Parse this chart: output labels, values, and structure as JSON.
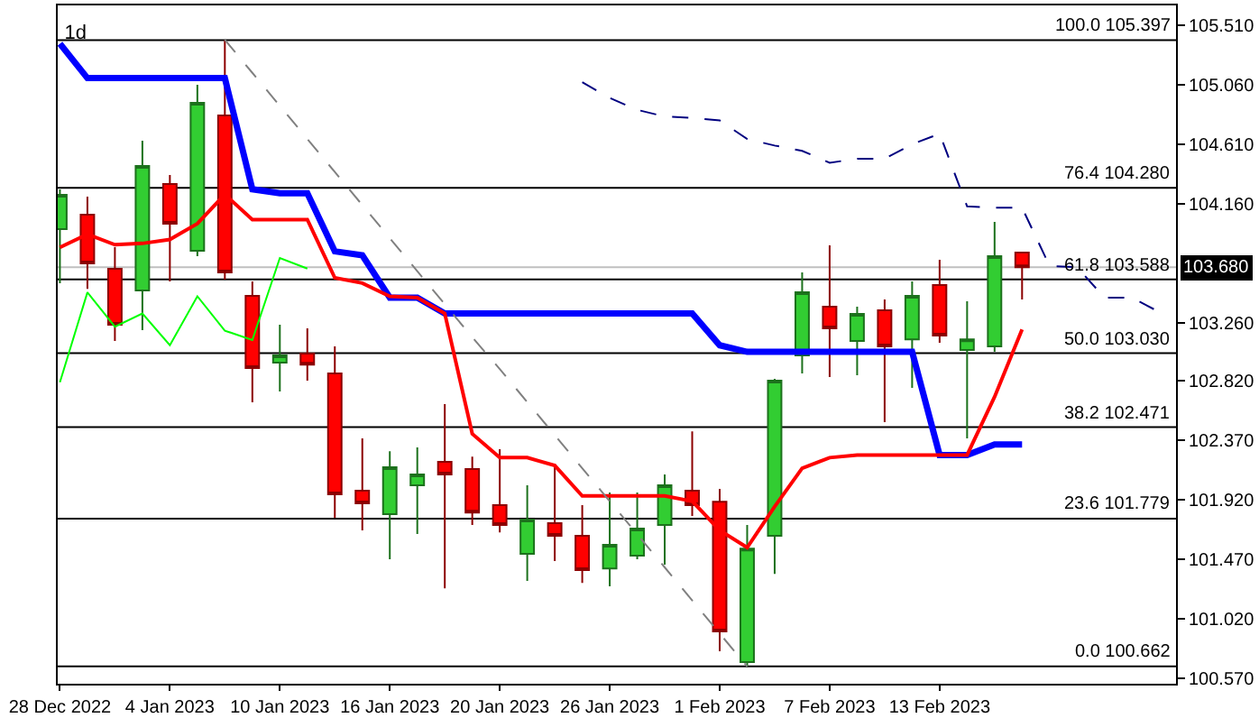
{
  "chart_data": {
    "type": "candlestick",
    "title": "1d",
    "categories": [
      "28 Dec 2022",
      null,
      null,
      null,
      "4 Jan 2023",
      null,
      null,
      null,
      "10 Jan 2023",
      null,
      null,
      null,
      "16 Jan 2023",
      null,
      null,
      null,
      "20 Jan 2023",
      null,
      null,
      null,
      "26 Jan 2023",
      null,
      null,
      null,
      "1 Feb 2023",
      null,
      null,
      null,
      "7 Feb 2023",
      null,
      null,
      null,
      "13 Feb 2023",
      null,
      null,
      null,
      null,
      null,
      null,
      null,
      null
    ],
    "ohlc": [
      [
        103.968,
        104.268,
        103.558,
        104.227
      ],
      [
        104.077,
        104.213,
        103.517,
        103.709
      ],
      [
        103.668,
        103.831,
        103.122,
        103.245
      ],
      [
        103.504,
        104.637,
        103.204,
        104.445
      ],
      [
        104.309,
        104.377,
        103.572,
        104.009
      ],
      [
        103.804,
        105.06,
        103.763,
        104.923
      ],
      [
        104.828,
        105.397,
        103.586,
        103.64
      ],
      [
        103.463,
        103.572,
        102.658,
        102.917
      ],
      [
        102.958,
        103.245,
        102.74,
        103.013
      ],
      [
        103.026,
        103.217,
        102.822,
        102.944
      ],
      [
        102.876,
        103.081,
        101.784,
        101.962
      ],
      [
        101.989,
        102.385,
        101.689,
        101.894
      ],
      [
        101.812,
        102.289,
        101.471,
        102.167
      ],
      [
        102.03,
        102.317,
        101.662,
        102.112
      ],
      [
        102.208,
        102.644,
        101.252,
        102.112
      ],
      [
        102.153,
        102.248,
        101.73,
        101.825
      ],
      [
        101.88,
        102.303,
        101.675,
        101.73
      ],
      [
        101.512,
        102.03,
        101.307,
        101.771
      ],
      [
        101.744,
        102.194,
        101.457,
        101.648
      ],
      [
        101.648,
        101.88,
        101.293,
        101.389
      ],
      [
        101.402,
        101.976,
        101.266,
        101.58
      ],
      [
        101.498,
        101.976,
        101.471,
        101.703
      ],
      [
        101.73,
        102.112,
        101.43,
        102.03
      ],
      [
        101.989,
        102.439,
        101.798,
        101.88
      ],
      [
        101.907,
        102.003,
        100.775,
        100.925
      ],
      [
        100.693,
        101.73,
        100.662,
        101.552
      ],
      [
        101.648,
        102.835,
        101.361,
        102.822
      ],
      [
        103.013,
        103.64,
        102.876,
        103.49
      ],
      [
        103.381,
        103.845,
        102.849,
        103.217
      ],
      [
        103.122,
        103.381,
        102.863,
        103.327
      ],
      [
        103.354,
        103.436,
        102.508,
        103.081
      ],
      [
        103.135,
        103.572,
        102.767,
        103.463
      ],
      [
        103.545,
        103.736,
        103.108,
        103.163
      ],
      [
        103.054,
        103.422,
        102.385,
        103.135
      ],
      [
        103.081,
        104.022,
        103.04,
        103.763
      ],
      [
        103.79,
        103.79,
        103.436,
        103.68
      ],
      null,
      null,
      null,
      null,
      null
    ],
    "colors": [
      "#32cd32",
      "#ff0000",
      "#ff0000",
      "#32cd32",
      "#ff0000",
      "#32cd32",
      "#ff0000",
      "#ff0000",
      "#32cd32",
      "#ff0000",
      "#ff0000",
      "#ff0000",
      "#32cd32",
      "#32cd32",
      "#ff0000",
      "#ff0000",
      "#ff0000",
      "#32cd32",
      "#ff0000",
      "#ff0000",
      "#32cd32",
      "#32cd32",
      "#32cd32",
      "#ff0000",
      "#ff0000",
      "#32cd32",
      "#32cd32",
      "#32cd32",
      "#ff0000",
      "#32cd32",
      "#ff0000",
      "#32cd32",
      "#ff0000",
      "#32cd32",
      "#32cd32",
      "#ff0000",
      null,
      null,
      null,
      null,
      null
    ],
    "series": [
      {
        "type": "line",
        "color": "#0000ff",
        "line_style": "solid",
        "values": [
          105.37,
          105.11,
          105.11,
          105.11,
          105.11,
          105.11,
          105.11,
          104.27,
          104.24,
          104.24,
          103.8,
          103.77,
          103.45,
          103.45,
          103.33,
          103.33,
          103.33,
          103.33,
          103.33,
          103.33,
          103.33,
          103.33,
          103.33,
          103.33,
          103.09,
          103.04,
          103.04,
          103.04,
          103.04,
          103.04,
          103.04,
          103.04,
          102.26,
          102.26,
          102.34,
          102.34,
          null,
          null,
          null,
          null,
          null
        ]
      },
      {
        "type": "line",
        "color": "#ff0000",
        "line_style": "solid",
        "values": [
          103.83,
          103.93,
          103.85,
          103.86,
          103.89,
          104.01,
          104.23,
          104.04,
          104.04,
          104.04,
          103.6,
          103.56,
          103.46,
          103.45,
          103.33,
          102.42,
          102.24,
          102.24,
          102.18,
          101.95,
          101.95,
          101.95,
          101.95,
          101.91,
          101.69,
          101.56,
          101.87,
          102.16,
          102.24,
          102.26,
          102.26,
          102.26,
          102.26,
          102.26,
          102.7,
          103.21,
          null,
          null,
          null,
          null,
          null
        ]
      },
      {
        "type": "line",
        "color": "#00ff00",
        "line_style": "solid",
        "values": [
          102.81,
          103.49,
          103.23,
          103.33,
          103.09,
          103.46,
          103.2,
          103.13,
          103.75,
          103.67,
          null,
          null,
          null,
          null,
          null,
          null,
          null,
          null,
          null,
          null,
          null,
          null,
          null,
          null,
          null,
          null,
          null,
          null,
          null,
          null,
          null,
          null,
          null,
          null,
          null,
          null,
          null,
          null,
          null,
          null,
          null
        ]
      },
      {
        "type": "line",
        "color": "#000080",
        "line_style": "dashed",
        "values": [
          null,
          null,
          null,
          null,
          null,
          null,
          null,
          null,
          null,
          null,
          null,
          null,
          null,
          null,
          null,
          null,
          null,
          null,
          null,
          105.08,
          104.96,
          104.87,
          104.82,
          104.81,
          104.79,
          104.65,
          104.6,
          104.56,
          104.47,
          104.5,
          104.5,
          104.61,
          104.69,
          104.14,
          104.13,
          104.13,
          103.69,
          103.68,
          103.45,
          103.45,
          103.34
        ]
      },
      {
        "type": "line",
        "color": "#808080",
        "line_style": "dashed",
        "values": [
          null,
          null,
          null,
          null,
          null,
          null,
          105.4,
          105.15,
          104.9,
          104.65,
          104.4,
          104.15,
          103.9,
          103.65,
          103.4,
          103.15,
          102.91,
          102.66,
          102.41,
          102.16,
          101.91,
          101.66,
          101.41,
          101.16,
          100.91,
          100.66,
          null,
          null,
          null,
          null,
          null,
          null,
          null,
          null,
          null,
          null,
          null,
          null,
          null,
          null,
          null
        ]
      }
    ],
    "ylim": [
      100.53,
      105.66
    ],
    "yticks": [
      {
        "value": 100.57,
        "label": "100.570"
      },
      {
        "value": 101.02,
        "label": "101.020"
      },
      {
        "value": 101.47,
        "label": "101.470"
      },
      {
        "value": 101.92,
        "label": "101.920"
      },
      {
        "value": 102.37,
        "label": "102.370"
      },
      {
        "value": 102.82,
        "label": "102.820"
      },
      {
        "value": 103.26,
        "label": "103.260"
      },
      {
        "value": 104.16,
        "label": "104.160"
      },
      {
        "value": 104.61,
        "label": "104.610"
      },
      {
        "value": 105.06,
        "label": "105.060"
      },
      {
        "value": 105.51,
        "label": "105.510"
      }
    ],
    "ref_lines": [
      {
        "axis": "y",
        "value": 105.397,
        "label": "100.0 105.397"
      },
      {
        "axis": "y",
        "value": 104.28,
        "label": "76.4 104.280"
      },
      {
        "axis": "y",
        "value": 103.588,
        "label": "61.8 103.588"
      },
      {
        "axis": "y",
        "value": 103.03,
        "label": "50.0 103.030"
      },
      {
        "axis": "y",
        "value": 102.471,
        "label": "38.2 102.471"
      },
      {
        "axis": "y",
        "value": 101.779,
        "label": "23.6 101.779"
      },
      {
        "axis": "y",
        "value": 100.662,
        "label": "0.0 100.662"
      },
      {
        "axis": "y",
        "value": 103.68,
        "label": "103.680",
        "color": "#c0c0c0"
      }
    ]
  }
}
